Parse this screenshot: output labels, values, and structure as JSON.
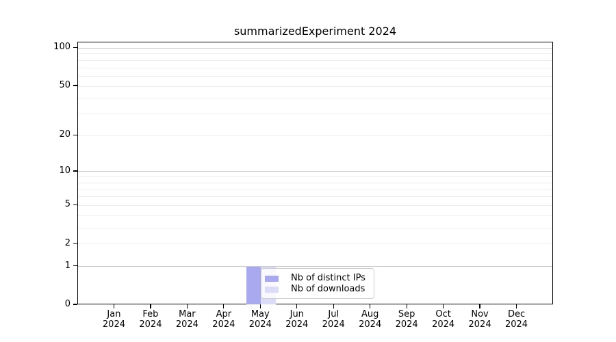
{
  "chart_data": {
    "type": "bar",
    "title": "summarizedExperiment 2024",
    "x_axis": {
      "categories": [
        "Jan",
        "Feb",
        "Mar",
        "Apr",
        "May",
        "Jun",
        "Jul",
        "Aug",
        "Sep",
        "Oct",
        "Nov",
        "Dec"
      ],
      "year_label": "2024"
    },
    "y_axis": {
      "tick_values": [
        0,
        1,
        2,
        5,
        10,
        20,
        50,
        100
      ],
      "tick_labels": [
        "0",
        "1",
        "2",
        "5",
        "10",
        "20",
        "50",
        "100"
      ],
      "scale": "log10(value+1)",
      "ylim": [
        0,
        111
      ]
    },
    "series": [
      {
        "name": "Nb of distinct IPs",
        "color": "#a9a9f0",
        "values": [
          0,
          0,
          0,
          0,
          1,
          0,
          0,
          0,
          0,
          0,
          0,
          0
        ]
      },
      {
        "name": "Nb of downloads",
        "color": "#dcdcf9",
        "values": [
          0,
          0,
          0,
          0,
          1,
          0,
          0,
          0,
          0,
          0,
          0,
          0
        ]
      }
    ],
    "grid": {
      "major_values": [
        1,
        10,
        100
      ],
      "minor_values": [
        2,
        3,
        4,
        5,
        6,
        7,
        8,
        9,
        20,
        30,
        40,
        50,
        60,
        70,
        80,
        90
      ],
      "major_color": "#c9c9c9",
      "minor_color": "#ececec"
    },
    "legend": {
      "position": "inside-bottom-center",
      "items": [
        "Nb of distinct IPs",
        "Nb of downloads"
      ]
    }
  },
  "colors": {
    "background": "#ffffff",
    "axis": "#000000",
    "text": "#000000",
    "legend_border": "#cccccc"
  }
}
